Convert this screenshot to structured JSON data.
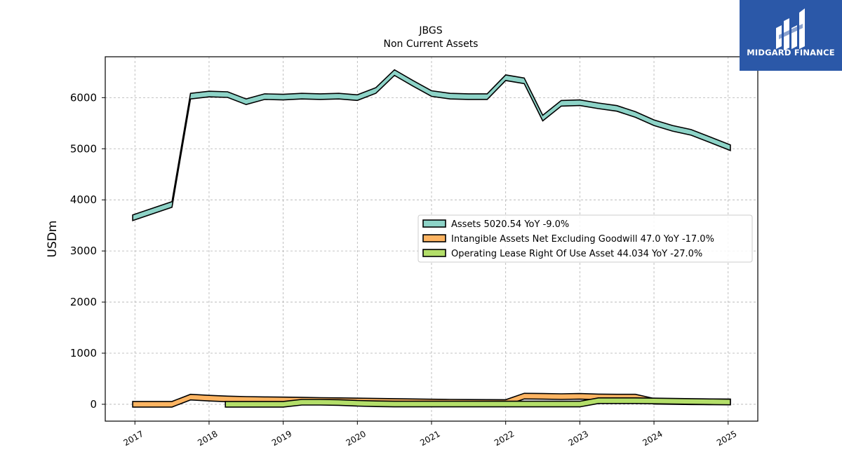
{
  "brand": {
    "name": "MIDGARD FINANCE",
    "logo_icon": "midgard-logo-icon",
    "bg_color": "#2b58a8"
  },
  "chart_data": {
    "type": "area",
    "title": "JBGS",
    "subtitle": "Non Current  Assets",
    "ylabel": "USDm",
    "xlabel": "",
    "ylim": [
      -330,
      6800
    ],
    "xlim": [
      2016.6,
      2025.4
    ],
    "yticks": [
      0,
      1000,
      2000,
      3000,
      4000,
      5000,
      6000
    ],
    "xticks": [
      "2017",
      "2018",
      "2019",
      "2020",
      "2021",
      "2022",
      "2023",
      "2024",
      "2025"
    ],
    "grid": true,
    "legend_position": "center-right",
    "series": [
      {
        "name": "Assets",
        "legend": "Assets  5020.54 YoY -9.0%",
        "color": "#8dd3c7",
        "x": [
          2016.97,
          2017.5,
          2017.75,
          2018.0,
          2018.25,
          2018.5,
          2018.75,
          2019.0,
          2019.25,
          2019.5,
          2019.75,
          2020.0,
          2020.25,
          2020.5,
          2020.75,
          2021.0,
          2021.25,
          2021.5,
          2021.75,
          2022.0,
          2022.25,
          2022.5,
          2022.75,
          2023.0,
          2023.25,
          2023.5,
          2023.75,
          2024.0,
          2024.25,
          2024.5,
          2024.75,
          2025.03
        ],
        "values": [
          3650,
          3910,
          6030,
          6070,
          6060,
          5920,
          6020,
          6010,
          6030,
          6020,
          6030,
          6000,
          6140,
          6490,
          6280,
          6080,
          6030,
          6020,
          6020,
          6390,
          6330,
          5600,
          5890,
          5900,
          5840,
          5790,
          5670,
          5510,
          5400,
          5320,
          5180,
          5020
        ]
      },
      {
        "name": "Intangible Assets Net Excluding Goodwill",
        "legend": "Intangible Assets Net Excluding Goodwill  47.0 YoY -17.0%",
        "color": "#fdb462",
        "x": [
          2016.97,
          2017.5,
          2017.75,
          2018.0,
          2018.25,
          2018.5,
          2018.75,
          2019.0,
          2019.25,
          2019.5,
          2019.75,
          2020.0,
          2020.25,
          2020.5,
          2020.75,
          2021.0,
          2021.25,
          2021.5,
          2021.75,
          2022.0,
          2022.25,
          2022.5,
          2022.75,
          2023.0,
          2023.25,
          2023.5,
          2023.75,
          2024.0,
          2024.25,
          2024.5,
          2024.75,
          2025.03
        ],
        "values": [
          0,
          0,
          140,
          120,
          105,
          95,
          90,
          85,
          80,
          75,
          70,
          65,
          60,
          55,
          50,
          45,
          40,
          38,
          36,
          35,
          160,
          155,
          150,
          155,
          145,
          140,
          140,
          60,
          55,
          50,
          48,
          47
        ]
      },
      {
        "name": "Operating Lease Right Of Use Asset",
        "legend": "Operating Lease Right Of Use Asset  44.034 YoY -27.0%",
        "color": "#b3de69",
        "x": [
          2018.22,
          2018.5,
          2018.75,
          2019.0,
          2019.25,
          2019.5,
          2019.75,
          2020.0,
          2020.25,
          2020.5,
          2020.75,
          2021.0,
          2021.25,
          2021.5,
          2021.75,
          2022.0,
          2022.25,
          2022.5,
          2022.75,
          2023.0,
          2023.25,
          2023.5,
          2023.75,
          2024.0,
          2024.25,
          2024.5,
          2024.75,
          2025.03
        ],
        "values": [
          0,
          0,
          0,
          0,
          40,
          40,
          35,
          20,
          10,
          5,
          5,
          5,
          5,
          5,
          5,
          5,
          5,
          5,
          5,
          5,
          70,
          70,
          70,
          65,
          60,
          55,
          50,
          44
        ]
      }
    ]
  }
}
